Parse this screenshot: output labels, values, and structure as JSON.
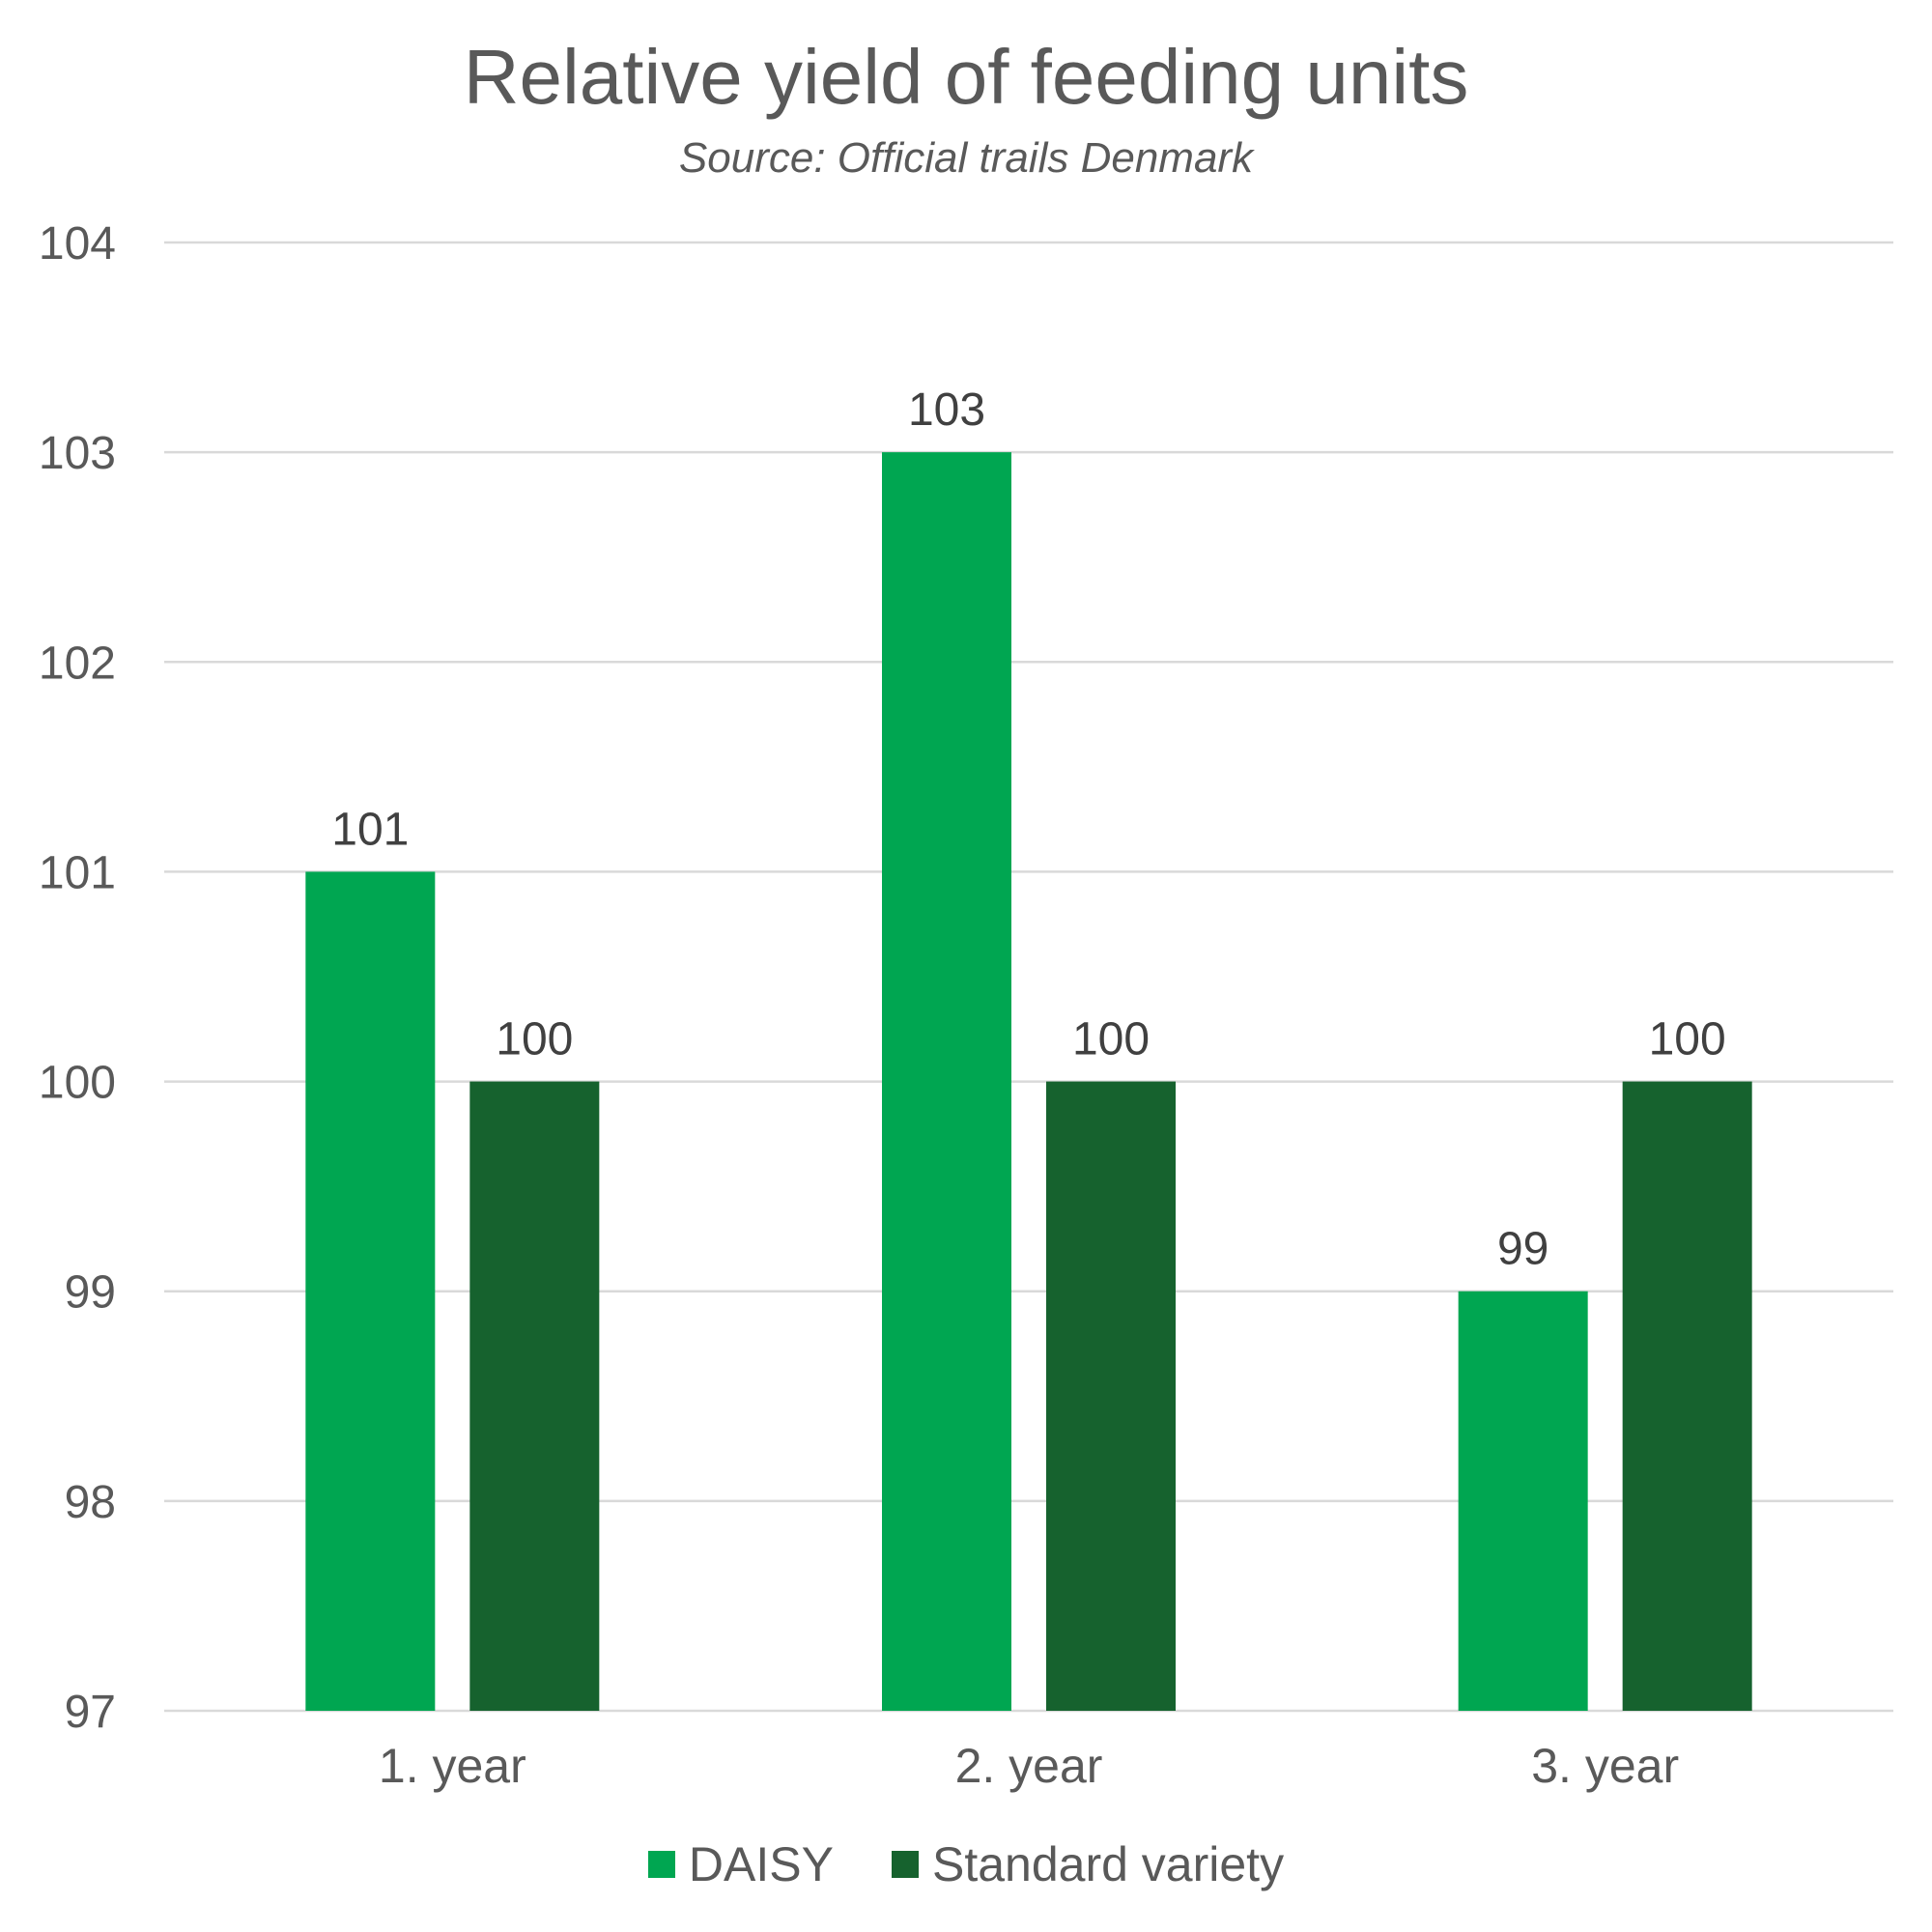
{
  "chart_data": {
    "type": "bar",
    "title": "Relative yield of feeding units",
    "subtitle": "Source: Official trails Denmark",
    "categories": [
      "1. year",
      "2. year",
      "3. year"
    ],
    "series": [
      {
        "name": "DAISY",
        "color": "#00a651",
        "values": [
          101,
          103,
          99
        ]
      },
      {
        "name": "Standard variety",
        "color": "#16622e",
        "values": [
          100,
          100,
          100
        ]
      }
    ],
    "ylim": [
      97,
      104
    ],
    "yticks": [
      97,
      98,
      99,
      100,
      101,
      102,
      103,
      104
    ],
    "grid": true,
    "data_labels": true,
    "legend_position": "bottom"
  }
}
